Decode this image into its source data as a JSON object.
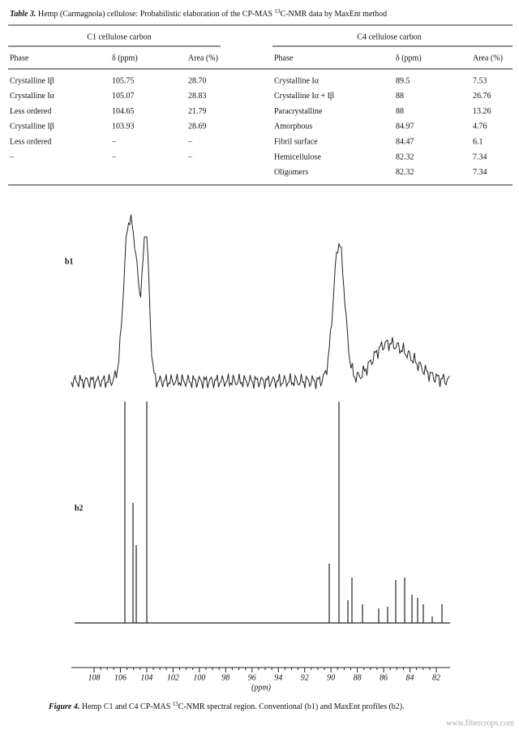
{
  "table": {
    "caption": {
      "label": "Table 3.",
      "text_before": " Hemp (Carmagnola) cellulose: Probabilistic elaboration of the CP-MAS ",
      "sup": "13",
      "text_after": "C-NMR data by MaxEnt method"
    },
    "c1": {
      "header": "C1 cellulose carbon",
      "columns": [
        "Phase",
        "δ (ppm)",
        "Area (%)"
      ],
      "rows": [
        [
          "Crystalline Iβ",
          "105.75",
          "28.70"
        ],
        [
          "Crystalline Iα",
          "105.07",
          "28.83"
        ],
        [
          "Less ordered",
          "104.65",
          "21.79"
        ],
        [
          "Crystalline Iβ",
          "103.93",
          "28.69"
        ],
        [
          "Less ordered",
          "–",
          "–"
        ],
        [
          "–",
          "–",
          "–"
        ]
      ]
    },
    "c4": {
      "header": "C4 cellulose carbon",
      "columns": [
        "Phase",
        "δ (ppm)",
        "Area (%)"
      ],
      "rows": [
        [
          "Crystalline Iα",
          "89.5",
          "7.53"
        ],
        [
          "Crystalline Iα + Iβ",
          "88",
          "26.76"
        ],
        [
          "Paracrystalline",
          "88",
          "13.26"
        ],
        [
          "Amorphous",
          "84.97",
          "4.76"
        ],
        [
          "Fibril surface",
          "84.47",
          "6.1"
        ],
        [
          "Hemicellulose",
          "82.32",
          "7.34"
        ],
        [
          "Oligomers",
          "82.32",
          "7.34"
        ]
      ]
    }
  },
  "figure": {
    "panel_labels": [
      "b1",
      "b2"
    ],
    "axis": {
      "ticks": [
        "108",
        "106",
        "104",
        "102",
        "100",
        "98",
        "96",
        "94",
        "92",
        "90",
        "88",
        "86",
        "84",
        "82"
      ],
      "label": "(ppm)"
    },
    "caption": {
      "label": "Figure 4.",
      "text_before": " Hemp C1 and C4 CP-MAS ",
      "sup": "13",
      "text_after": "C-NMR spectral region. Conventional (b1) and MaxEnt profiles (b2)."
    },
    "watermark": "www.fibercrops.com"
  }
}
